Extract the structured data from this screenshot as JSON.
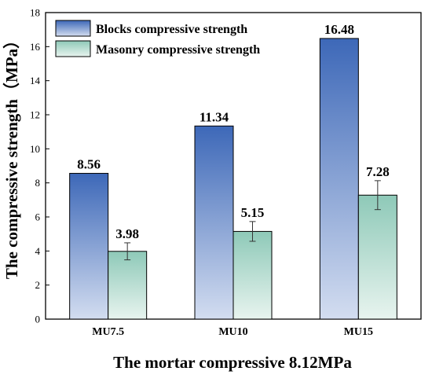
{
  "chart_data": {
    "type": "bar",
    "title": "",
    "xlabel": "The mortar compressive 8.12MPa",
    "ylabel": "The compressive strength（MPa）",
    "categories": [
      "MU7.5",
      "MU10",
      "MU15"
    ],
    "ylim": [
      0,
      18
    ],
    "yticks": [
      0,
      2,
      4,
      6,
      8,
      10,
      12,
      14,
      16,
      18
    ],
    "grid": false,
    "legend_position": "top-left",
    "series": [
      {
        "name": "Blocks compressive strength",
        "values": [
          8.56,
          11.34,
          16.48
        ],
        "labels": [
          "8.56",
          "11.34",
          "16.48"
        ],
        "color_top": "#3d68b8",
        "color_bottom": "#d3ddf0"
      },
      {
        "name": "Masonry compressive strength",
        "values": [
          3.98,
          5.15,
          7.28
        ],
        "labels": [
          "3.98",
          "5.15",
          "7.28"
        ],
        "error": [
          0.5,
          0.58,
          0.85
        ],
        "color_top": "#8ec9b8",
        "color_bottom": "#e8f4ef"
      }
    ]
  }
}
